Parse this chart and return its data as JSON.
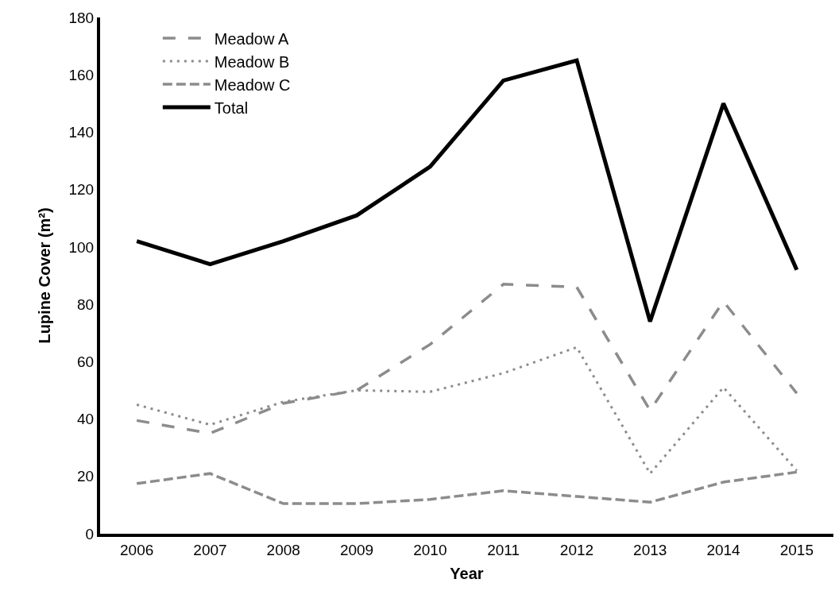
{
  "chart_data": {
    "type": "line",
    "xlabel": "Year",
    "ylabel": "Lupine Cover (m²)",
    "categories": [
      "2006",
      "2007",
      "2008",
      "2009",
      "2010",
      "2011",
      "2012",
      "2013",
      "2014",
      "2015"
    ],
    "series": [
      {
        "name": "Meadow A",
        "color": "#8c8c8c",
        "line_style": "long_dashed",
        "values": [
          39.5,
          35,
          45.5,
          50,
          66,
          87,
          86,
          43,
          81,
          49
        ]
      },
      {
        "name": "Meadow B",
        "color": "#8c8c8c",
        "line_style": "dotted",
        "values": [
          45,
          38,
          46,
          50,
          49.5,
          56,
          65,
          21,
          51,
          22
        ]
      },
      {
        "name": "Meadow C",
        "color": "#8c8c8c",
        "line_style": "dashed",
        "values": [
          17.5,
          21,
          10.5,
          10.5,
          12,
          15,
          13,
          11,
          18,
          21.5
        ]
      },
      {
        "name": "Total",
        "color": "#000000",
        "line_style": "solid",
        "values": [
          102,
          94,
          102,
          111,
          128,
          158,
          165,
          74,
          150,
          92
        ]
      }
    ],
    "ylim": [
      0,
      180
    ],
    "yticks": [
      0,
      20,
      40,
      60,
      80,
      100,
      120,
      140,
      160,
      180
    ],
    "grid": false,
    "legend": "top left"
  }
}
